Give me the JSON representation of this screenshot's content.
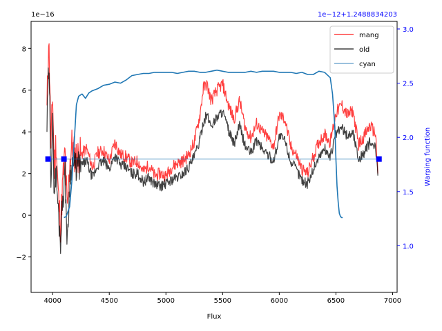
{
  "chart_data": {
    "type": "line",
    "title": "",
    "xlabel": "Flux",
    "ylabel": "",
    "y2label": "Warping function",
    "xlim": [
      3810,
      7040
    ],
    "ylim": [
      -3.7,
      9.3
    ],
    "y2lim": [
      0.57,
      3.07
    ],
    "left_offset_text": "1e−16",
    "right_offset_text": "1e−12+1.2488834203",
    "xticks": [
      4000,
      4500,
      5000,
      5500,
      6000,
      6500,
      7000
    ],
    "yticks": [
      -2,
      0,
      2,
      4,
      6,
      8
    ],
    "y2ticks": [
      1.0,
      1.5,
      2.0,
      2.5,
      3.0
    ],
    "grid": false,
    "legend_position": "top-right",
    "colors": {
      "mang": "#ff0000",
      "old": "#000000",
      "warp": "#1f77b4",
      "cyan": "#1f77b4",
      "markers": "#0000ff",
      "right_axis": "#0000ff"
    },
    "series": [
      {
        "name": "mang",
        "axis": "left",
        "x": [
          3950,
          3965,
          3975,
          3985,
          4000,
          4015,
          4030,
          4050,
          4070,
          4090,
          4110,
          4130,
          4150,
          4170,
          4200,
          4250,
          4300,
          4350,
          4400,
          4450,
          4500,
          4550,
          4600,
          4650,
          4700,
          4750,
          4800,
          4850,
          4900,
          4950,
          5000,
          5050,
          5100,
          5150,
          5200,
          5250,
          5300,
          5330,
          5360,
          5400,
          5450,
          5500,
          5550,
          5600,
          5650,
          5700,
          5750,
          5800,
          5850,
          5900,
          5950,
          6000,
          6050,
          6100,
          6150,
          6200,
          6250,
          6300,
          6350,
          6400,
          6450,
          6500,
          6550,
          6600,
          6650,
          6700,
          6750,
          6800,
          6850,
          6870
        ],
        "y": [
          5.0,
          8.6,
          6.5,
          3.0,
          5.8,
          2.2,
          3.6,
          1.0,
          -0.5,
          1.6,
          3.0,
          0.0,
          2.5,
          3.4,
          2.8,
          2.9,
          3.2,
          2.3,
          3.0,
          3.1,
          2.6,
          3.5,
          2.9,
          2.8,
          2.5,
          2.6,
          2.1,
          2.4,
          1.9,
          2.0,
          1.9,
          2.3,
          2.5,
          2.6,
          2.9,
          3.5,
          4.8,
          6.1,
          6.3,
          5.5,
          6.0,
          6.3,
          5.3,
          4.6,
          5.5,
          4.2,
          3.7,
          4.4,
          4.0,
          3.7,
          3.3,
          4.8,
          4.6,
          3.3,
          2.9,
          2.2,
          2.0,
          2.8,
          3.5,
          3.9,
          3.5,
          4.9,
          5.3,
          4.8,
          5.0,
          3.4,
          3.8,
          4.3,
          3.9,
          2.0
        ]
      },
      {
        "name": "old",
        "axis": "left",
        "x": [
          3950,
          3965,
          3975,
          3985,
          4000,
          4015,
          4030,
          4050,
          4070,
          4090,
          4110,
          4130,
          4150,
          4170,
          4200,
          4250,
          4300,
          4350,
          4400,
          4450,
          4500,
          4550,
          4600,
          4650,
          4700,
          4750,
          4800,
          4850,
          4900,
          4950,
          5000,
          5050,
          5100,
          5150,
          5200,
          5250,
          5300,
          5330,
          5360,
          5400,
          5450,
          5500,
          5550,
          5600,
          5650,
          5700,
          5750,
          5800,
          5850,
          5900,
          5950,
          6000,
          6050,
          6100,
          6150,
          6200,
          6250,
          6300,
          6350,
          6400,
          6450,
          6500,
          6550,
          6600,
          6650,
          6700,
          6750,
          6800,
          6850,
          6870
        ],
        "y": [
          4.2,
          6.9,
          5.2,
          1.9,
          4.3,
          1.2,
          2.2,
          0.2,
          -1.2,
          0.9,
          2.0,
          -1.5,
          1.6,
          2.5,
          2.3,
          2.4,
          2.6,
          1.8,
          2.4,
          2.6,
          2.2,
          2.9,
          2.4,
          2.3,
          2.0,
          2.0,
          1.6,
          1.8,
          1.5,
          1.4,
          1.5,
          1.7,
          1.8,
          2.0,
          2.3,
          2.8,
          3.6,
          4.5,
          4.8,
          4.3,
          4.7,
          5.0,
          4.1,
          3.4,
          4.3,
          3.3,
          3.0,
          3.6,
          3.2,
          2.9,
          2.6,
          3.8,
          3.6,
          2.6,
          2.2,
          1.7,
          1.5,
          2.2,
          2.8,
          3.2,
          2.8,
          3.9,
          4.2,
          3.8,
          4.0,
          2.7,
          3.0,
          3.5,
          3.2,
          1.9
        ]
      },
      {
        "name": "",
        "axis": "right",
        "x": [
          4100,
          4120,
          4150,
          4170,
          4190,
          4210,
          4230,
          4260,
          4290,
          4320,
          4350,
          4400,
          4450,
          4500,
          4550,
          4600,
          4650,
          4700,
          4750,
          4800,
          4850,
          4900,
          4950,
          5000,
          5050,
          5100,
          5150,
          5200,
          5250,
          5300,
          5350,
          5400,
          5450,
          5500,
          5550,
          5600,
          5650,
          5700,
          5750,
          5800,
          5850,
          5900,
          5950,
          6000,
          6050,
          6100,
          6150,
          6200,
          6250,
          6300,
          6350,
          6400,
          6450,
          6470,
          6490,
          6500,
          6510,
          6520,
          6530,
          6540,
          6550,
          6560
        ],
        "y": [
          1.26,
          1.27,
          1.36,
          1.6,
          1.95,
          2.3,
          2.38,
          2.4,
          2.36,
          2.41,
          2.43,
          2.45,
          2.48,
          2.49,
          2.51,
          2.5,
          2.53,
          2.57,
          2.58,
          2.59,
          2.59,
          2.6,
          2.6,
          2.6,
          2.6,
          2.59,
          2.6,
          2.61,
          2.61,
          2.6,
          2.6,
          2.61,
          2.62,
          2.61,
          2.6,
          2.6,
          2.6,
          2.6,
          2.61,
          2.6,
          2.61,
          2.61,
          2.61,
          2.6,
          2.6,
          2.6,
          2.59,
          2.6,
          2.58,
          2.58,
          2.61,
          2.6,
          2.55,
          2.4,
          2.1,
          1.8,
          1.55,
          1.4,
          1.3,
          1.27,
          1.26,
          1.26
        ]
      },
      {
        "name": "cyan",
        "axis": "right",
        "x": [
          3960,
          6880
        ],
        "y": [
          1.8,
          1.8
        ]
      }
    ],
    "markers": {
      "axis": "right",
      "x": [
        3960,
        4100,
        6880
      ],
      "y": [
        1.8,
        1.8,
        1.8
      ]
    },
    "legend": [
      "mang",
      "old",
      "cyan"
    ]
  }
}
